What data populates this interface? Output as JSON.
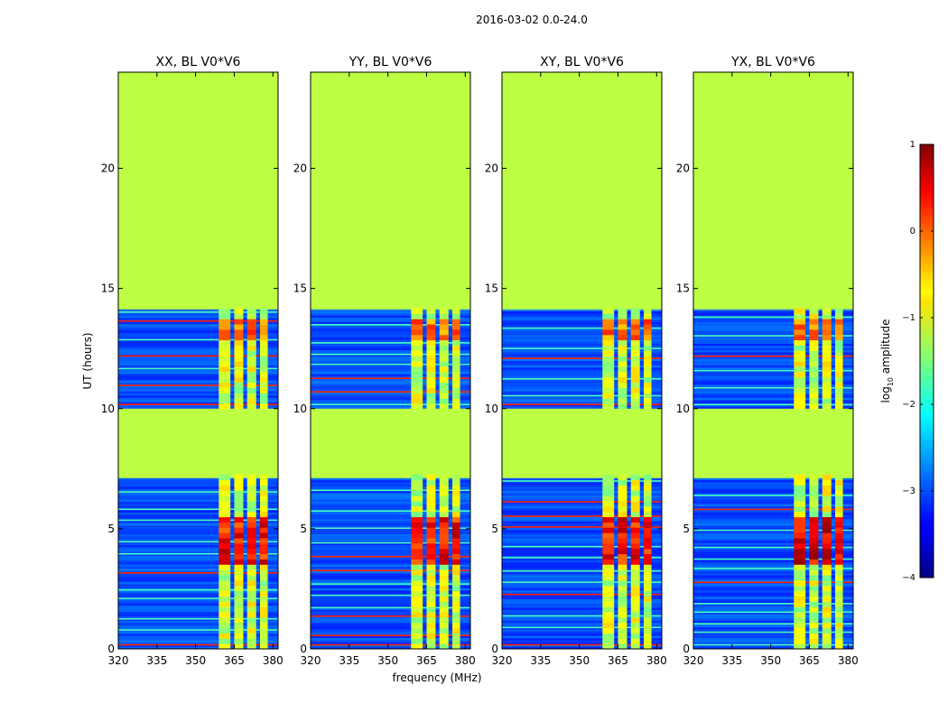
{
  "chart_data": {
    "type": "heatmap",
    "suptitle": "2016-03-02 0.0-24.0",
    "xlabel": "frequency (MHz)",
    "ylabel": "UT (hours)",
    "xlim": [
      320,
      382
    ],
    "ylim": [
      0,
      24
    ],
    "xticks": [
      320,
      335,
      350,
      365,
      380
    ],
    "yticks": [
      0,
      5,
      10,
      15,
      20
    ],
    "panels": [
      {
        "title": "XX, BL V0*V6",
        "occupied_band_mhz": [
          359,
          381
        ],
        "peak_log10": 0.3
      },
      {
        "title": "YY, BL V0*V6",
        "occupied_band_mhz": [
          359,
          378
        ],
        "peak_log10": 0.3
      },
      {
        "title": "XY, BL V0*V6",
        "occupied_band_mhz": [
          359,
          378
        ],
        "peak_log10": 0.3
      },
      {
        "title": "YX, BL V0*V6",
        "occupied_band_mhz": [
          359,
          378
        ],
        "peak_log10": 0.5
      }
    ],
    "data_gaps_ut_hours": [
      [
        7.1,
        10.0
      ],
      [
        14.1,
        24.0
      ]
    ],
    "gap_fill_log10": -1.2,
    "background_log10": -3.0,
    "colorbar": {
      "label": "log10 amplitude",
      "label_base": "log",
      "label_sub": "10",
      "label_rest": " amplitude",
      "range": [
        -4,
        1
      ],
      "ticks": [
        1,
        0,
        -1,
        -2,
        -3,
        -4
      ],
      "tick_labels": [
        "1",
        "0",
        "−1",
        "−2",
        "−3",
        "−4"
      ],
      "colormap": "jet"
    }
  }
}
